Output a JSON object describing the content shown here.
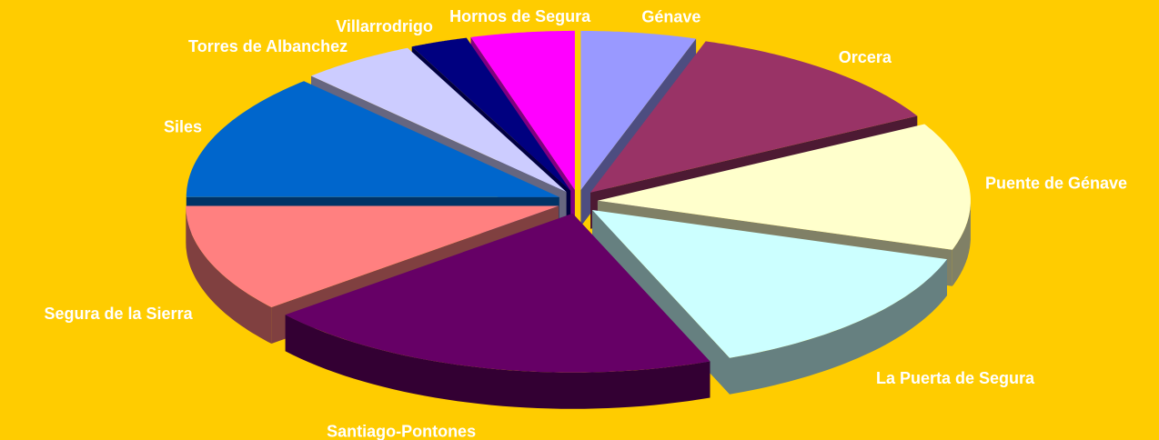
{
  "chart_data": {
    "type": "pie",
    "categories": [
      "Génave",
      "Orcera",
      "Puente de Génave",
      "La Puerta de Segura",
      "Santiago-Pontones",
      "Segura de la Sierra",
      "Siles",
      "Torres de Albanchez",
      "Villarrodrigo",
      "Hornos de Segura"
    ],
    "values": [
      5,
      12,
      13,
      14,
      20,
      11,
      13,
      5,
      2.5,
      4.5
    ],
    "colors": [
      "#9999ff",
      "#993366",
      "#ffffcc",
      "#ccffff",
      "#660066",
      "#ff8080",
      "#0066cc",
      "#ccccff",
      "#000080",
      "#ff00ff"
    ]
  }
}
